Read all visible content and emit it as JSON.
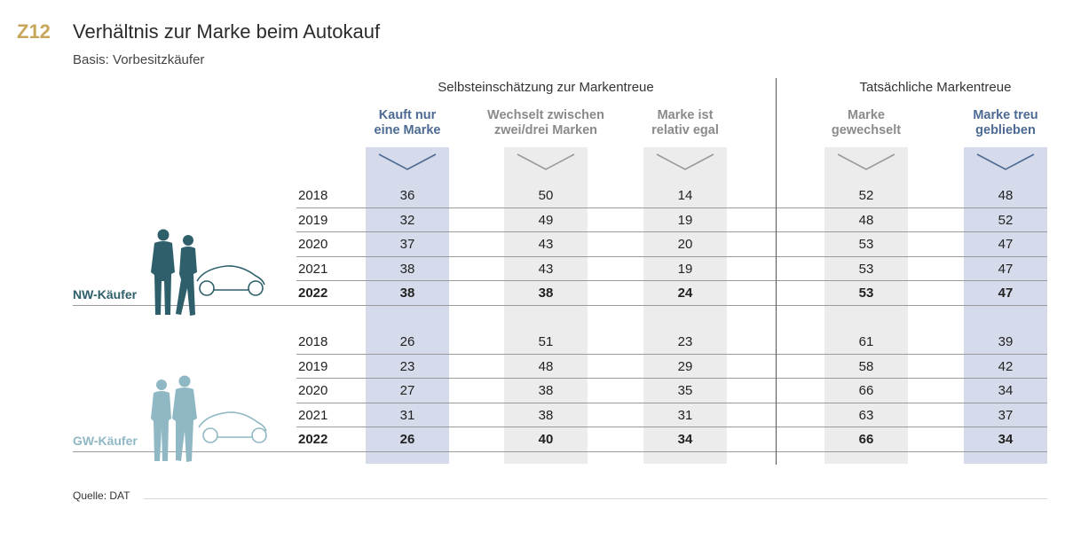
{
  "figure_code": "Z12",
  "title": "Verhältnis zur Marke beim Autokauf",
  "subtitle": "Basis: Vorbesitzkäufer",
  "source": "Quelle: DAT",
  "colors": {
    "gold": "#c7a659",
    "blue_text": "#4c6a93",
    "grey_text": "#8a8a8a",
    "blue_fill": "#d5dbea",
    "grey_fill": "#ececec",
    "nw": "#2e5f6b",
    "gw": "#8fb8c4"
  },
  "chart_data": {
    "type": "table",
    "groups": [
      "Selbsteinschätzung zur Markentreue",
      "Tatsächliche Markentreue"
    ],
    "columns": [
      {
        "label": "Kauft nur\neine Marke",
        "group": 0,
        "highlight": true
      },
      {
        "label": "Wechselt zwischen\nzwei/drei Marken",
        "group": 0,
        "highlight": false
      },
      {
        "label": "Marke ist\nrelativ egal",
        "group": 0,
        "highlight": false
      },
      {
        "label": "Marke\ngewechselt",
        "group": 1,
        "highlight": false
      },
      {
        "label": "Marke treu\ngeblieben",
        "group": 1,
        "highlight": true
      }
    ],
    "segments": [
      {
        "name": "NW-Käufer",
        "rows": [
          {
            "year": "2018",
            "values": [
              36,
              50,
              14,
              52,
              48
            ]
          },
          {
            "year": "2019",
            "values": [
              32,
              49,
              19,
              48,
              52
            ]
          },
          {
            "year": "2020",
            "values": [
              37,
              43,
              20,
              53,
              47
            ]
          },
          {
            "year": "2021",
            "values": [
              38,
              43,
              19,
              53,
              47
            ]
          },
          {
            "year": "2022",
            "values": [
              38,
              38,
              24,
              53,
              47
            ]
          }
        ]
      },
      {
        "name": "GW-Käufer",
        "rows": [
          {
            "year": "2018",
            "values": [
              26,
              51,
              23,
              61,
              39
            ]
          },
          {
            "year": "2019",
            "values": [
              23,
              48,
              29,
              58,
              42
            ]
          },
          {
            "year": "2020",
            "values": [
              27,
              38,
              35,
              66,
              34
            ]
          },
          {
            "year": "2021",
            "values": [
              31,
              38,
              31,
              63,
              37
            ]
          },
          {
            "year": "2022",
            "values": [
              26,
              40,
              34,
              66,
              34
            ]
          }
        ]
      }
    ]
  }
}
